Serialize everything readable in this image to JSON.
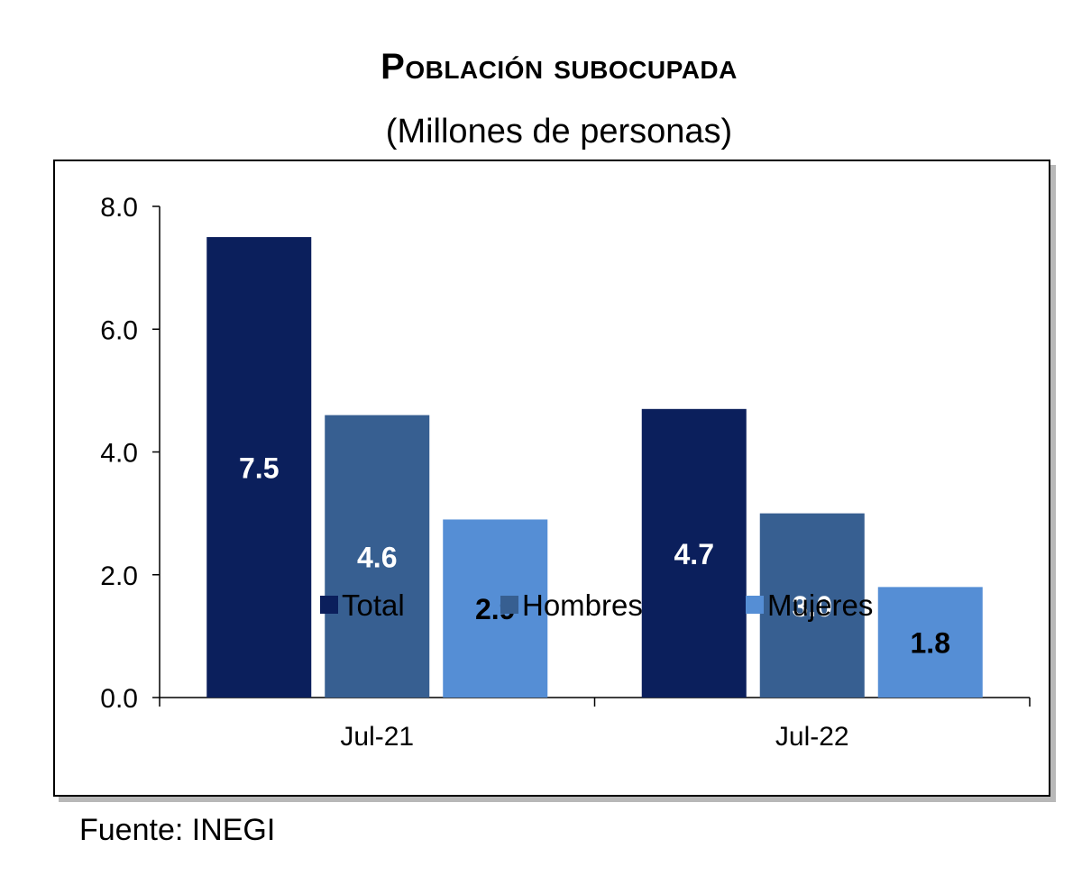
{
  "chart_data": {
    "type": "bar",
    "title": "Población subocupada",
    "subtitle": "(Millones de personas)",
    "categories": [
      "Jul-21",
      "Jul-22"
    ],
    "series": [
      {
        "name": "Total",
        "values": [
          7.5,
          4.7
        ],
        "color": "#0b1f5c",
        "label_color": "#ffffff"
      },
      {
        "name": "Hombres",
        "values": [
          4.6,
          3.0
        ],
        "color": "#375f91",
        "label_color": "#ffffff"
      },
      {
        "name": "Mujeres",
        "values": [
          2.9,
          1.8
        ],
        "color": "#558ed5",
        "label_color": "#000000"
      }
    ],
    "ylim": [
      0,
      8
    ],
    "yticks": [
      "0.0",
      "2.0",
      "4.0",
      "6.0",
      "8.0"
    ],
    "grid": false,
    "legend_position": "bottom"
  },
  "source": "Fuente: INEGI"
}
